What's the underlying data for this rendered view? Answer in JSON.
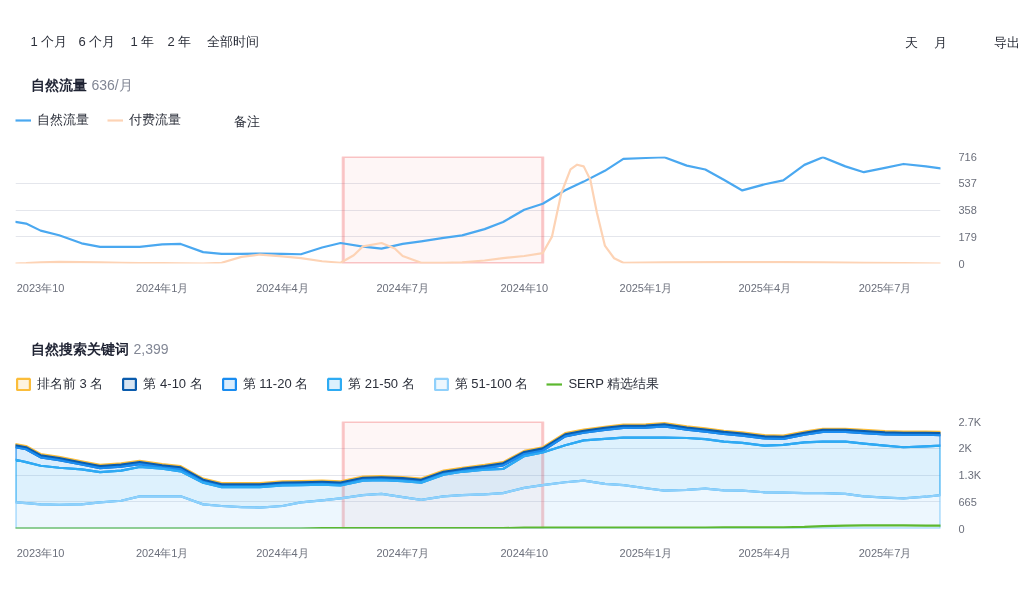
{
  "chart_data": [
    {
      "type": "line",
      "title": "自然流量",
      "subtitle": "636/月",
      "annotations": [
        "1 个月",
        "6 个月",
        "1 年",
        "2 年",
        "全部时间",
        "天",
        "月",
        "导出",
        "备注"
      ],
      "x": [
        "2023-09-12",
        "2023-09-20",
        "2023-10-01",
        "2023-10-15",
        "2023-11-01",
        "2023-11-15",
        "2023-12-01",
        "2023-12-15",
        "2024-01-01",
        "2024-01-15",
        "2024-02-01",
        "2024-02-15",
        "2024-03-01",
        "2024-03-15",
        "2024-04-01",
        "2024-04-15",
        "2024-05-01",
        "2024-05-15",
        "2024-06-01",
        "2024-06-15",
        "2024-07-01",
        "2024-07-15",
        "2024-08-01",
        "2024-08-15",
        "2024-09-01",
        "2024-09-15",
        "2024-10-01",
        "2024-10-15",
        "2024-11-01",
        "2024-11-15",
        "2024-12-01",
        "2024-12-15",
        "2025-01-01",
        "2025-01-15",
        "2025-02-01",
        "2025-02-15",
        "2025-03-01",
        "2025-03-15",
        "2025-04-01",
        "2025-04-15",
        "2025-05-01",
        "2025-05-15",
        "2025-06-01",
        "2025-06-15",
        "2025-07-01",
        "2025-07-15",
        "2025-08-01",
        "2025-08-12"
      ],
      "series": [
        {
          "name": "自然流量",
          "color": "#4aa8f0",
          "values": [
            278,
            267,
            220,
            189,
            135,
            111,
            111,
            111,
            128,
            131,
            76,
            65,
            65,
            67,
            65,
            62,
            107,
            137,
            113,
            100,
            131,
            148,
            172,
            188,
            230,
            278,
            360,
            400,
            490,
            548,
            620,
            700,
            706,
            711,
            655,
            629,
            560,
            489,
            530,
            556,
            660,
            711,
            650,
            611,
            640,
            666,
            650,
            636
          ]
        },
        {
          "name": "付费流量",
          "color": "#fdd3b5",
          "x": [
            "2023-09-12",
            "2023-09-20",
            "2023-10-01",
            "2023-10-15",
            "2023-11-01",
            "2023-11-15",
            "2023-12-01",
            "2023-12-15",
            "2024-01-01",
            "2024-01-15",
            "2024-02-01",
            "2024-02-15",
            "2024-03-01",
            "2024-03-15",
            "2024-04-01",
            "2024-04-15",
            "2024-05-01",
            "2024-05-15",
            "2024-05-25",
            "2024-06-01",
            "2024-06-15",
            "2024-06-25",
            "2024-07-01",
            "2024-07-15",
            "2024-08-01",
            "2024-08-15",
            "2024-09-01",
            "2024-09-15",
            "2024-10-01",
            "2024-10-15",
            "2024-10-22",
            "2024-10-29",
            "2024-11-05",
            "2024-11-10",
            "2024-11-15",
            "2024-11-20",
            "2024-11-25",
            "2024-12-01",
            "2024-12-08",
            "2024-12-15",
            "2025-01-15",
            "2025-03-01",
            "2025-04-15",
            "2025-05-15",
            "2025-06-15",
            "2025-07-15",
            "2025-08-12"
          ],
          "values": [
            0,
            2,
            8,
            11,
            9,
            7,
            5,
            3,
            2,
            1,
            0,
            5,
            44,
            60,
            48,
            36,
            15,
            5,
            55,
            115,
            137,
            100,
            50,
            5,
            5,
            8,
            20,
            36,
            50,
            70,
            180,
            470,
            630,
            661,
            650,
            560,
            340,
            120,
            35,
            5,
            7,
            9,
            9,
            7,
            4,
            2,
            0
          ]
        }
      ],
      "xlim": [
        "2023-09-12",
        "2025-08-12"
      ],
      "xticks": [
        {
          "value": "2023-10-01",
          "label": "2023年10"
        },
        {
          "value": "2024-01-01",
          "label": "2024年1月"
        },
        {
          "value": "2024-04-01",
          "label": "2024年4月"
        },
        {
          "value": "2024-07-01",
          "label": "2024年7月"
        },
        {
          "value": "2024-10-01",
          "label": "2024年10"
        },
        {
          "value": "2025-01-01",
          "label": "2025年1月"
        },
        {
          "value": "2025-04-01",
          "label": "2025年4月"
        },
        {
          "value": "2025-07-01",
          "label": "2025年7月"
        }
      ],
      "ylim": [
        0,
        716
      ],
      "yticks": [
        0,
        179,
        358,
        537,
        716
      ],
      "grid": "y",
      "legend": "top left",
      "bands": [
        {
          "axis": "x",
          "from": "2024-05-17",
          "to": "2024-10-15",
          "color": "#f0494b"
        }
      ]
    },
    {
      "type": "area",
      "stacked": true,
      "title": "自然搜索关键词",
      "subtitle": "2,399",
      "x": [
        "2023-09-12",
        "2023-09-20",
        "2023-10-01",
        "2023-10-15",
        "2023-11-01",
        "2023-11-15",
        "2023-12-01",
        "2023-12-15",
        "2024-01-01",
        "2024-01-15",
        "2024-02-01",
        "2024-02-15",
        "2024-03-01",
        "2024-03-15",
        "2024-04-01",
        "2024-04-15",
        "2024-05-01",
        "2024-05-15",
        "2024-06-01",
        "2024-06-15",
        "2024-07-01",
        "2024-07-15",
        "2024-08-01",
        "2024-08-15",
        "2024-09-01",
        "2024-09-15",
        "2024-10-01",
        "2024-10-15",
        "2024-11-01",
        "2024-11-15",
        "2024-12-01",
        "2024-12-15",
        "2025-01-01",
        "2025-01-15",
        "2025-02-01",
        "2025-02-15",
        "2025-03-01",
        "2025-03-15",
        "2025-04-01",
        "2025-04-15",
        "2025-05-01",
        "2025-05-15",
        "2025-06-01",
        "2025-06-15",
        "2025-07-01",
        "2025-07-15",
        "2025-08-01",
        "2025-08-12"
      ],
      "series": [
        {
          "name": "第 51-100 名",
          "color": "#8fd0fb",
          "values": [
            650,
            630,
            600,
            590,
            600,
            650,
            690,
            800,
            800,
            800,
            600,
            560,
            530,
            520,
            560,
            650,
            700,
            750,
            830,
            860,
            780,
            710,
            800,
            830,
            850,
            880,
            1010,
            1080,
            1150,
            1190,
            1110,
            1080,
            1000,
            940,
            960,
            990,
            950,
            940,
            900,
            890,
            880,
            880,
            860,
            800,
            770,
            750,
            790,
            830
          ]
        },
        {
          "name": "第 21-50 名",
          "color": "#2eabf3",
          "values": [
            1060,
            1020,
            960,
            920,
            870,
            750,
            750,
            730,
            690,
            620,
            540,
            470,
            500,
            510,
            510,
            430,
            390,
            320,
            360,
            340,
            400,
            430,
            540,
            580,
            610,
            600,
            790,
            810,
            920,
            1000,
            1120,
            1180,
            1260,
            1320,
            1290,
            1230,
            1210,
            1190,
            1160,
            1190,
            1260,
            1280,
            1300,
            1310,
            1290,
            1270,
            1250,
            1230
          ]
        },
        {
          "name": "第 11-20 名",
          "color": "#1a8cf0",
          "values": [
            310,
            320,
            210,
            190,
            120,
            100,
            100,
            70,
            30,
            50,
            20,
            20,
            20,
            20,
            20,
            20,
            20,
            20,
            20,
            20,
            20,
            20,
            20,
            20,
            40,
            90,
            50,
            50,
            220,
            190,
            220,
            240,
            250,
            280,
            210,
            190,
            190,
            180,
            180,
            150,
            190,
            240,
            240,
            260,
            280,
            310,
            290,
            260
          ]
        },
        {
          "name": "第 4-10 名",
          "color": "#0b5cad",
          "values": [
            50,
            50,
            50,
            50,
            50,
            50,
            50,
            50,
            50,
            50,
            50,
            50,
            50,
            50,
            50,
            50,
            50,
            50,
            50,
            50,
            50,
            50,
            50,
            50,
            50,
            50,
            50,
            50,
            50,
            50,
            50,
            50,
            50,
            50,
            50,
            50,
            50,
            50,
            50,
            50,
            50,
            50,
            50,
            50,
            50,
            50,
            50,
            50
          ]
        },
        {
          "name": "排名前 3 名",
          "color": "#fbbd3a",
          "values": [
            30,
            30,
            30,
            30,
            30,
            30,
            30,
            30,
            30,
            30,
            30,
            30,
            30,
            30,
            30,
            30,
            30,
            30,
            30,
            30,
            30,
            30,
            30,
            30,
            30,
            30,
            30,
            30,
            30,
            30,
            30,
            30,
            30,
            30,
            30,
            30,
            30,
            30,
            30,
            30,
            30,
            30,
            30,
            30,
            30,
            30,
            30,
            30
          ]
        },
        {
          "name": "SERP 精选结果",
          "color": "#5cb82f",
          "type": "line",
          "values": [
            0,
            0,
            0,
            0,
            0,
            0,
            0,
            0,
            0,
            0,
            0,
            0,
            0,
            0,
            0,
            0,
            10,
            10,
            10,
            10,
            10,
            10,
            10,
            10,
            10,
            10,
            20,
            20,
            20,
            20,
            20,
            20,
            20,
            20,
            20,
            20,
            30,
            30,
            30,
            30,
            40,
            60,
            70,
            80,
            80,
            80,
            70,
            70
          ]
        }
      ],
      "xlim": [
        "2023-09-12",
        "2025-08-12"
      ],
      "xticks": [
        {
          "value": "2023-10-01",
          "label": "2023年10"
        },
        {
          "value": "2024-01-01",
          "label": "2024年1月"
        },
        {
          "value": "2024-04-01",
          "label": "2024年4月"
        },
        {
          "value": "2024-07-01",
          "label": "2024年7月"
        },
        {
          "value": "2024-10-01",
          "label": "2024年10"
        },
        {
          "value": "2025-01-01",
          "label": "2025年1月"
        },
        {
          "value": "2025-04-01",
          "label": "2025年4月"
        },
        {
          "value": "2025-07-01",
          "label": "2025年7月"
        }
      ],
      "ylim": [
        0,
        2660
      ],
      "yticks": [
        0,
        665,
        {
          "value": 1330,
          "label": "1.3K"
        },
        {
          "value": 1995,
          "label": "2K"
        },
        {
          "value": 2660,
          "label": "2.7K"
        }
      ],
      "grid": "y",
      "legend": "top left",
      "bands": [
        {
          "axis": "x",
          "from": "2024-05-17",
          "to": "2024-10-15",
          "color": "#f0494b"
        }
      ]
    }
  ]
}
